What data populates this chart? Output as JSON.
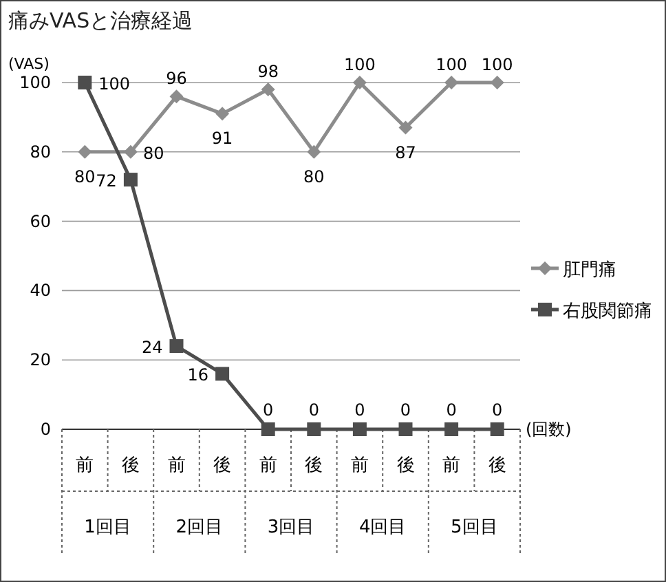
{
  "chart_data": {
    "type": "line",
    "title": "痛みVASと治療経過",
    "ylabel": "(VAS)",
    "xlabel": "(回数)",
    "categories": [
      "前",
      "後",
      "前",
      "後",
      "前",
      "後",
      "前",
      "後",
      "前",
      "後"
    ],
    "annotations": [
      "1回目",
      "2回目",
      "3回目",
      "4回目",
      "5回目"
    ],
    "series": [
      {
        "name": "肛門痛",
        "color": "#8c8c8c",
        "marker": "diamond",
        "values": [
          80,
          80,
          96,
          91,
          98,
          80,
          100,
          87,
          100,
          100
        ]
      },
      {
        "name": "右股関節痛",
        "color": "#4d4d4d",
        "marker": "square",
        "values": [
          100,
          72,
          24,
          16,
          0,
          0,
          0,
          0,
          0,
          0
        ]
      }
    ],
    "ylim": [
      0,
      100
    ],
    "yticks": [
      0,
      20,
      40,
      60,
      80,
      100
    ],
    "grid": "y",
    "legend": "right",
    "data_labels": true,
    "line_style": "solid"
  }
}
